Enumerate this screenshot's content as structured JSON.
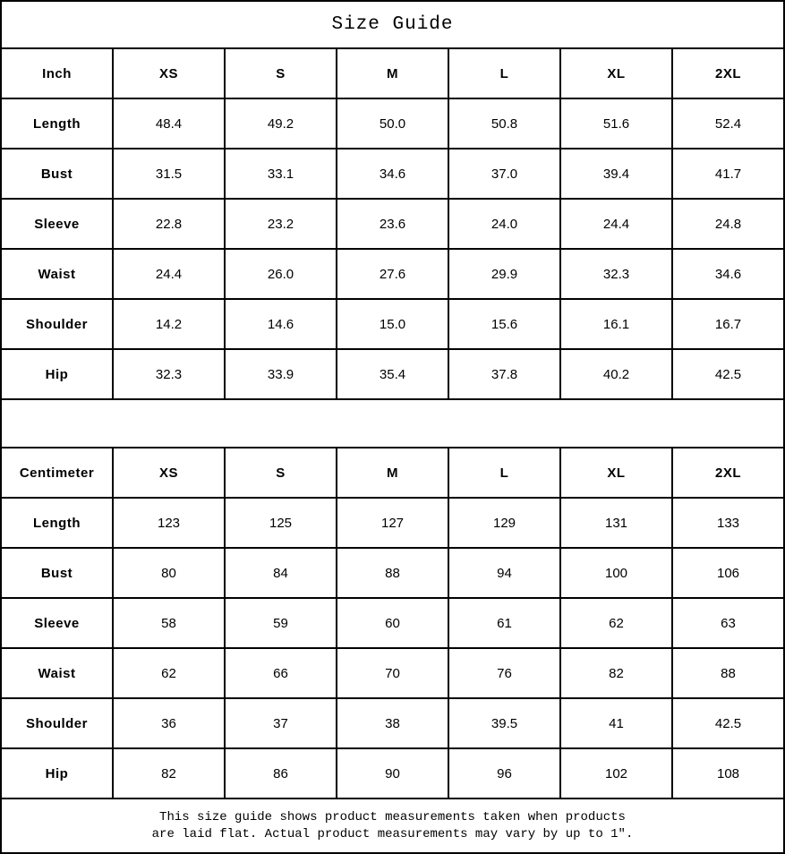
{
  "title": "Size Guide",
  "tables": [
    {
      "unit_label": "Inch",
      "sizes": [
        "XS",
        "S",
        "M",
        "L",
        "XL",
        "2XL"
      ],
      "rows": [
        {
          "label": "Length",
          "values": [
            "48.4",
            "49.2",
            "50.0",
            "50.8",
            "51.6",
            "52.4"
          ]
        },
        {
          "label": "Bust",
          "values": [
            "31.5",
            "33.1",
            "34.6",
            "37.0",
            "39.4",
            "41.7"
          ]
        },
        {
          "label": "Sleeve",
          "values": [
            "22.8",
            "23.2",
            "23.6",
            "24.0",
            "24.4",
            "24.8"
          ]
        },
        {
          "label": "Waist",
          "values": [
            "24.4",
            "26.0",
            "27.6",
            "29.9",
            "32.3",
            "34.6"
          ]
        },
        {
          "label": "Shoulder",
          "values": [
            "14.2",
            "14.6",
            "15.0",
            "15.6",
            "16.1",
            "16.7"
          ]
        },
        {
          "label": "Hip",
          "values": [
            "32.3",
            "33.9",
            "35.4",
            "37.8",
            "40.2",
            "42.5"
          ]
        }
      ]
    },
    {
      "unit_label": "Centimeter",
      "sizes": [
        "XS",
        "S",
        "M",
        "L",
        "XL",
        "2XL"
      ],
      "rows": [
        {
          "label": "Length",
          "values": [
            "123",
            "125",
            "127",
            "129",
            "131",
            "133"
          ]
        },
        {
          "label": "Bust",
          "values": [
            "80",
            "84",
            "88",
            "94",
            "100",
            "106"
          ]
        },
        {
          "label": "Sleeve",
          "values": [
            "58",
            "59",
            "60",
            "61",
            "62",
            "63"
          ]
        },
        {
          "label": "Waist",
          "values": [
            "62",
            "66",
            "70",
            "76",
            "82",
            "88"
          ]
        },
        {
          "label": "Shoulder",
          "values": [
            "36",
            "37",
            "38",
            "39.5",
            "41",
            "42.5"
          ]
        },
        {
          "label": "Hip",
          "values": [
            "82",
            "86",
            "90",
            "96",
            "102",
            "108"
          ]
        }
      ]
    }
  ],
  "footer": {
    "line1": "This size guide shows product measurements taken when products",
    "line2": "are laid flat. Actual product measurements may vary by up to 1″."
  }
}
